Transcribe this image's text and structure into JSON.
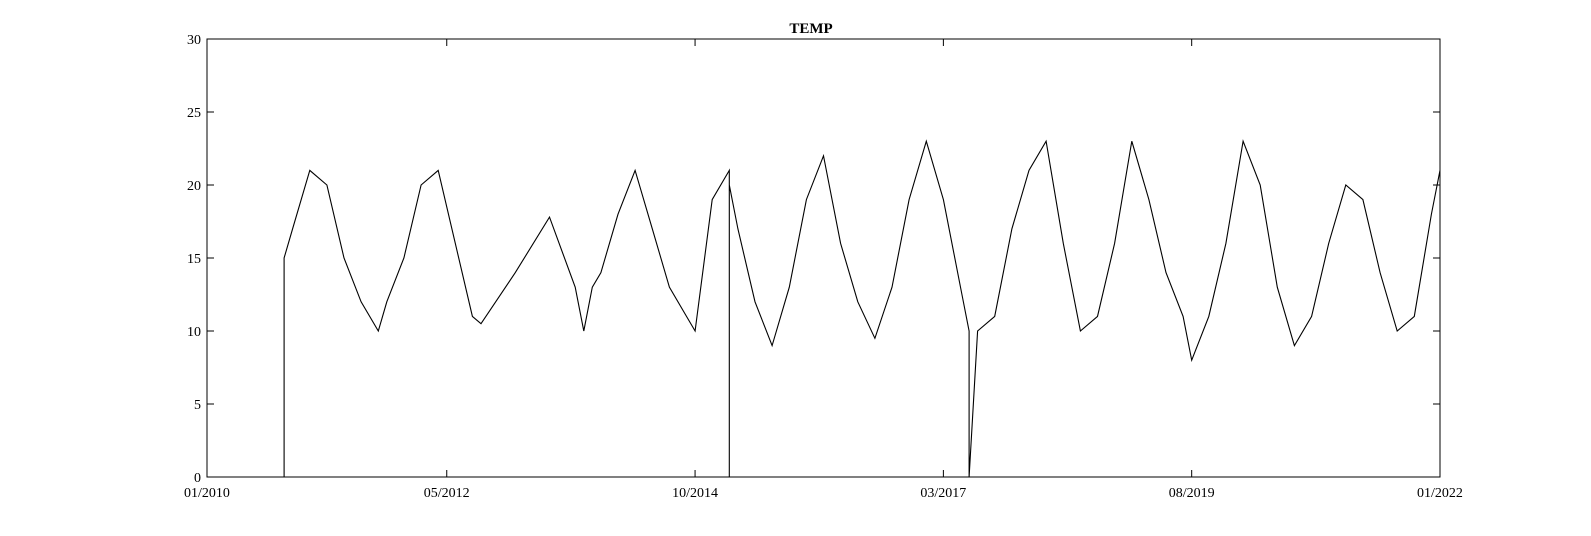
{
  "chart_data": {
    "type": "line",
    "title": "TEMP",
    "xlabel": "",
    "ylabel": "",
    "xlim": [
      "2010-01",
      "2022-01"
    ],
    "ylim": [
      0,
      30
    ],
    "grid": false,
    "legend": "none",
    "x_tick_labels": [
      "01/2010",
      "05/2012",
      "10/2014",
      "03/2017",
      "08/2019",
      "01/2022"
    ],
    "y_tick_labels": [
      "0",
      "5",
      "10",
      "15",
      "20",
      "25",
      "30"
    ],
    "line_color": "#000000",
    "series": [
      {
        "x": [
          "2010-01",
          "2010-10",
          "2010-10",
          "2010-11",
          "2011-01",
          "2011-03",
          "2011-05",
          "2011-07",
          "2011-09",
          "2011-10",
          "2011-12",
          "2012-02",
          "2012-04",
          "2012-06",
          "2012-08",
          "2012-09",
          "2013-01",
          "2013-05",
          "2013-08",
          "2013-09",
          "2013-10",
          "2013-11",
          "2014-01",
          "2014-03",
          "2014-05",
          "2014-07",
          "2014-09",
          "2014-10",
          "2014-12",
          "2015-02",
          "2015-02",
          "2015-02",
          "2015-03",
          "2015-05",
          "2015-07",
          "2015-09",
          "2015-11",
          "2016-01",
          "2016-03",
          "2016-05",
          "2016-07",
          "2016-09",
          "2016-11",
          "2017-01",
          "2017-03",
          "2017-05",
          "2017-06",
          "2017-06",
          "2017-07",
          "2017-09",
          "2017-11",
          "2018-01",
          "2018-03",
          "2018-05",
          "2018-07",
          "2018-09",
          "2018-11",
          "2019-01",
          "2019-03",
          "2019-05",
          "2019-07",
          "2019-08",
          "2019-10",
          "2019-12",
          "2020-02",
          "2020-04",
          "2020-06",
          "2020-08",
          "2020-10",
          "2020-12",
          "2021-02",
          "2021-04",
          "2021-06",
          "2021-08",
          "2021-10",
          "2021-12",
          "2022-01"
        ],
        "y": [
          0,
          0,
          15,
          17,
          21,
          20,
          15,
          12,
          10,
          12,
          15,
          20,
          21,
          16,
          11,
          10.5,
          14,
          17.8,
          13,
          10,
          13,
          14,
          18,
          21,
          17,
          13,
          11,
          10,
          19,
          21,
          0,
          20,
          17,
          12,
          9,
          13,
          19,
          22,
          16,
          12,
          9.5,
          13,
          19,
          23,
          19,
          13,
          10,
          0,
          10,
          11,
          17,
          21,
          23,
          16,
          10,
          11,
          16,
          23,
          19,
          14,
          11,
          8,
          11,
          16,
          23,
          20,
          13,
          9,
          11,
          16,
          20,
          19,
          14,
          10,
          11,
          18,
          21
        ]
      }
    ]
  }
}
